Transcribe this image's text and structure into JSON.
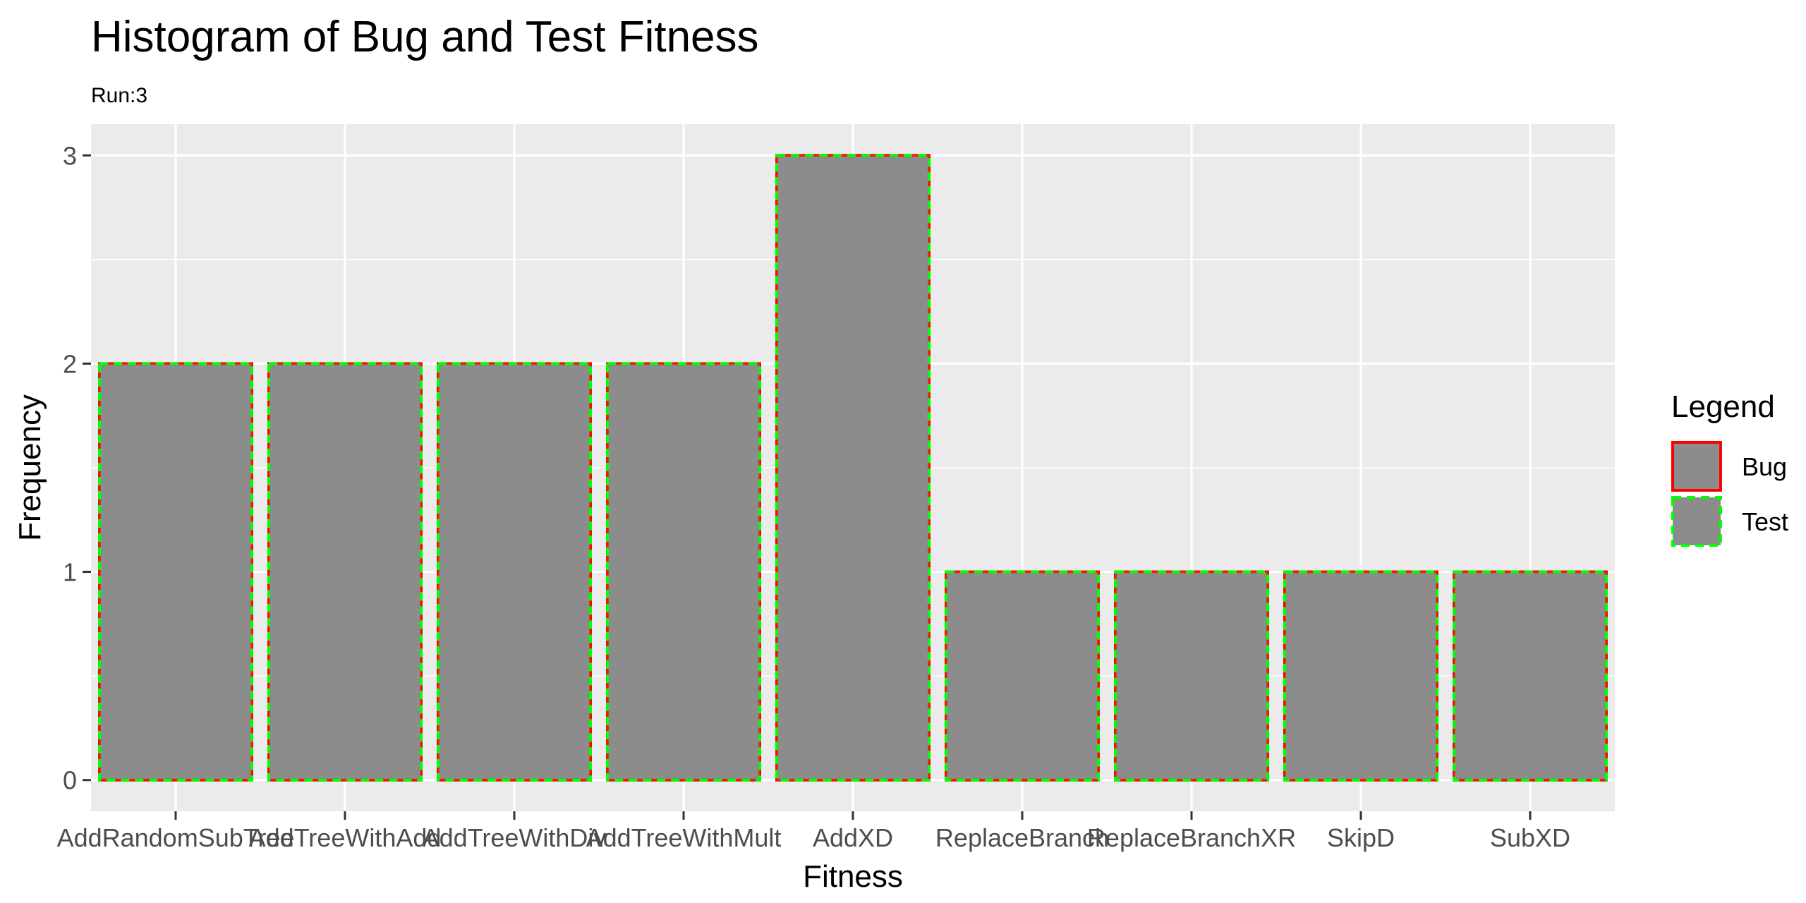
{
  "chart_data": {
    "type": "bar",
    "title": "Histogram of Bug and Test Fitness",
    "subtitle": "Run:3",
    "xlabel": "Fitness",
    "ylabel": "Frequency",
    "categories": [
      "AddRandomSubTree",
      "AddTreeWithAdd",
      "AddTreeWithDiv",
      "AddTreeWithMult",
      "AddXD",
      "ReplaceBranch",
      "ReplaceBranchXR",
      "SkipD",
      "SubXD"
    ],
    "series": [
      {
        "name": "Bug",
        "values": [
          2,
          2,
          2,
          2,
          3,
          1,
          1,
          1,
          1
        ],
        "outline_color": "#ff0000",
        "line_style": "solid"
      },
      {
        "name": "Test",
        "values": [
          2,
          2,
          2,
          2,
          3,
          1,
          1,
          1,
          1
        ],
        "outline_color": "#00ff00",
        "line_style": "dashed"
      }
    ],
    "yticks": [
      0,
      1,
      2,
      3
    ],
    "ylim": [
      -0.15,
      3.15
    ],
    "grid": true,
    "legend": {
      "title": "Legend",
      "placement": "right"
    },
    "colors": {
      "bar_fill": "#8c8c8c",
      "panel_bg": "#ebebeb",
      "grid": "#ffffff"
    }
  }
}
